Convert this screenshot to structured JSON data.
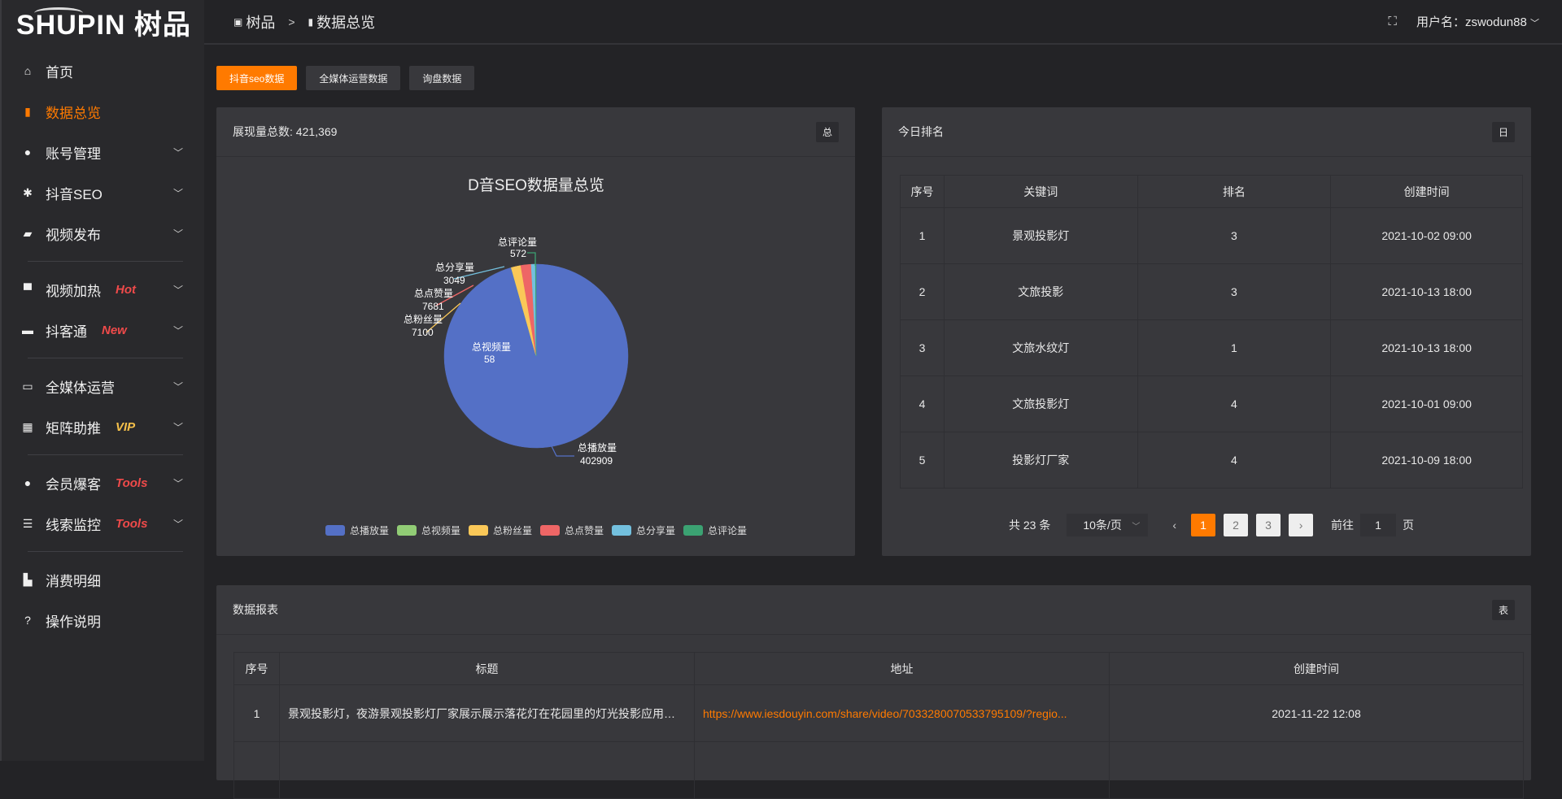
{
  "brand": {
    "logo_text": "SHUPIN 树品"
  },
  "sidebar": {
    "items": [
      {
        "label": "首页",
        "icon": "home-icon",
        "glyph": "⌂"
      },
      {
        "label": "数据总览",
        "icon": "bar-chart-icon",
        "glyph": "▮",
        "active": true
      },
      {
        "label": "账号管理",
        "icon": "user-icon",
        "glyph": "●",
        "chev": true
      },
      {
        "label": "抖音SEO",
        "icon": "gear-icon",
        "glyph": "✱",
        "chev": true
      },
      {
        "label": "视频发布",
        "icon": "camera-icon",
        "glyph": "▰",
        "chev": true
      },
      {
        "divider": true
      },
      {
        "label": "视频加热",
        "icon": "flag-icon",
        "glyph": "▀",
        "chev": true,
        "badge": "Hot",
        "badge_color": "#ef4a4a"
      },
      {
        "label": "抖客通",
        "icon": "chat-icon",
        "glyph": "▬",
        "chev": true,
        "badge": "New",
        "badge_color": "#ef4a4a"
      },
      {
        "divider": true
      },
      {
        "label": "全媒体运营",
        "icon": "monitor-icon",
        "glyph": "▭",
        "chev": true
      },
      {
        "label": "矩阵助推",
        "icon": "grid-icon",
        "glyph": "▦",
        "chev": true,
        "badge": "VIP",
        "badge_color": "#f5c04a"
      },
      {
        "divider": true
      },
      {
        "label": "会员爆客",
        "icon": "user-icon",
        "glyph": "●",
        "chev": true,
        "badge": "Tools",
        "badge_color": "#ef4a4a"
      },
      {
        "label": "线索监控",
        "icon": "sliders-icon",
        "glyph": "☰",
        "chev": true,
        "badge": "Tools",
        "badge_color": "#ef4a4a"
      },
      {
        "divider": true
      },
      {
        "label": "消费明细",
        "icon": "wallet-icon",
        "glyph": "▙"
      },
      {
        "label": "操作说明",
        "icon": "help-icon",
        "glyph": "?"
      }
    ]
  },
  "header": {
    "crumb1": "树品",
    "sep": ">",
    "crumb2": "数据总览",
    "user": "用户名：zswodun88"
  },
  "tabs": [
    "抖音seo数据",
    "全媒体运营数据",
    "询盘数据"
  ],
  "overview": {
    "title": "展现量总数: 421,369",
    "tag": "总"
  },
  "chart_data": {
    "type": "pie",
    "title": "D音SEO数据量总览",
    "legend_position": "bottom",
    "slices": [
      {
        "name": "总播放量",
        "value": 402909,
        "color": "#5470c6"
      },
      {
        "name": "总视频量",
        "value": 58,
        "color": "#91cc75"
      },
      {
        "name": "总粉丝量",
        "value": 7100,
        "color": "#fac858"
      },
      {
        "name": "总点赞量",
        "value": 7681,
        "color": "#ee6666"
      },
      {
        "name": "总分享量",
        "value": 3049,
        "color": "#73c0de"
      },
      {
        "name": "总评论量",
        "value": 572,
        "color": "#3ba272"
      }
    ]
  },
  "ranking": {
    "title": "今日排名",
    "tag": "日",
    "columns": [
      "序号",
      "关键词",
      "排名",
      "创建时间"
    ],
    "rows": [
      [
        "1",
        "景观投影灯",
        "3",
        "2021-10-02 09:00"
      ],
      [
        "2",
        "文旅投影",
        "3",
        "2021-10-13 18:00"
      ],
      [
        "3",
        "文旅水纹灯",
        "1",
        "2021-10-13 18:00"
      ],
      [
        "4",
        "文旅投影灯",
        "4",
        "2021-10-01 09:00"
      ],
      [
        "5",
        "投影灯厂家",
        "4",
        "2021-10-09 18:00"
      ]
    ],
    "pagination": {
      "total": "共 23 条",
      "page_size": "10条/页",
      "pages": [
        "1",
        "2",
        "3"
      ],
      "current": 1,
      "goto_label": "前往",
      "goto_value": "1",
      "page_unit": "页"
    }
  },
  "report": {
    "title": "数据报表",
    "tag": "表",
    "columns": [
      "序号",
      "标题",
      "地址",
      "创建时间"
    ],
    "rows": [
      [
        "1",
        "景观投影灯，夜游景观投影灯厂家展示展示落花灯在花园里的灯光投影应用效果 #",
        "https://www.iesdouyin.com/share/video/7033280070533795109/?regio...",
        "2021-11-22 12:08"
      ]
    ]
  }
}
